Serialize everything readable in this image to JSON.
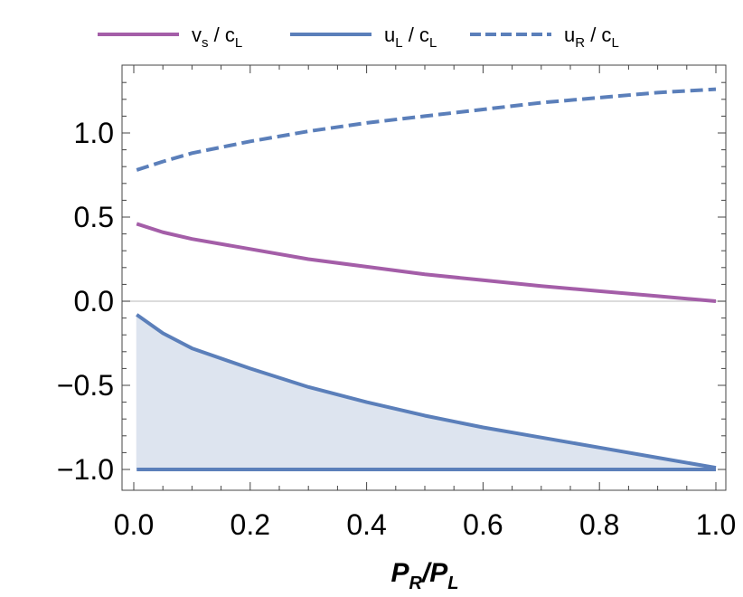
{
  "chart_data": {
    "type": "line",
    "xlabel": {
      "main": "P",
      "sub1": "R",
      "sep": "/",
      "main2": "P",
      "sub2": "L"
    },
    "xlim": [
      0.0,
      1.0
    ],
    "ylim": [
      -1.1,
      1.35
    ],
    "xticks": [
      "0.0",
      "0.2",
      "0.4",
      "0.6",
      "0.8",
      "1.0"
    ],
    "xtick_values": [
      0.0,
      0.2,
      0.4,
      0.6,
      0.8,
      1.0
    ],
    "yticks": [
      "1.0",
      "0.5",
      "0.0",
      "−0.5",
      "−1.0"
    ],
    "ytick_values": [
      1.0,
      0.5,
      0.0,
      -0.5,
      -1.0
    ],
    "zero_line": true,
    "grid": false,
    "legend_position": "top",
    "legend": [
      {
        "main": "v",
        "sub": "s",
        "rest": " / c",
        "sub2": "L",
        "series": "vs"
      },
      {
        "main": "u",
        "sub": "L",
        "rest": " / c",
        "sub2": "L",
        "series": "uL"
      },
      {
        "main": "u",
        "sub": "R",
        "rest": " / c",
        "sub2": "L",
        "series": "uR"
      }
    ],
    "series": [
      {
        "id": "vs",
        "color": "#a45ea8",
        "dash": "solid",
        "x": [
          0.005,
          0.05,
          0.1,
          0.2,
          0.3,
          0.4,
          0.5,
          0.6,
          0.7,
          0.8,
          0.9,
          1.0
        ],
        "y": [
          0.46,
          0.41,
          0.37,
          0.31,
          0.25,
          0.205,
          0.16,
          0.125,
          0.09,
          0.06,
          0.03,
          0.0
        ]
      },
      {
        "id": "uL",
        "color": "#5b7fba",
        "dash": "solid",
        "x": [
          0.005,
          0.05,
          0.1,
          0.2,
          0.3,
          0.4,
          0.5,
          0.6,
          0.7,
          0.8,
          0.9,
          1.0
        ],
        "y": [
          -0.08,
          -0.19,
          -0.28,
          -0.4,
          -0.51,
          -0.6,
          -0.68,
          -0.75,
          -0.81,
          -0.87,
          -0.93,
          -0.99
        ]
      },
      {
        "id": "uR",
        "color": "#5b7fba",
        "dash": "dashed",
        "x": [
          0.005,
          0.05,
          0.1,
          0.2,
          0.3,
          0.4,
          0.5,
          0.6,
          0.7,
          0.8,
          0.9,
          1.0
        ],
        "y": [
          0.78,
          0.83,
          0.88,
          0.95,
          1.01,
          1.06,
          1.1,
          1.14,
          1.18,
          1.21,
          1.24,
          1.26
        ]
      },
      {
        "id": "lower",
        "color": "#5b7fba",
        "dash": "solid",
        "x": [
          0.005,
          1.0
        ],
        "y": [
          -1.0,
          -1.0
        ]
      }
    ],
    "shaded_region": {
      "between": [
        "lower",
        "uL"
      ],
      "color": "#dde4ef"
    }
  }
}
